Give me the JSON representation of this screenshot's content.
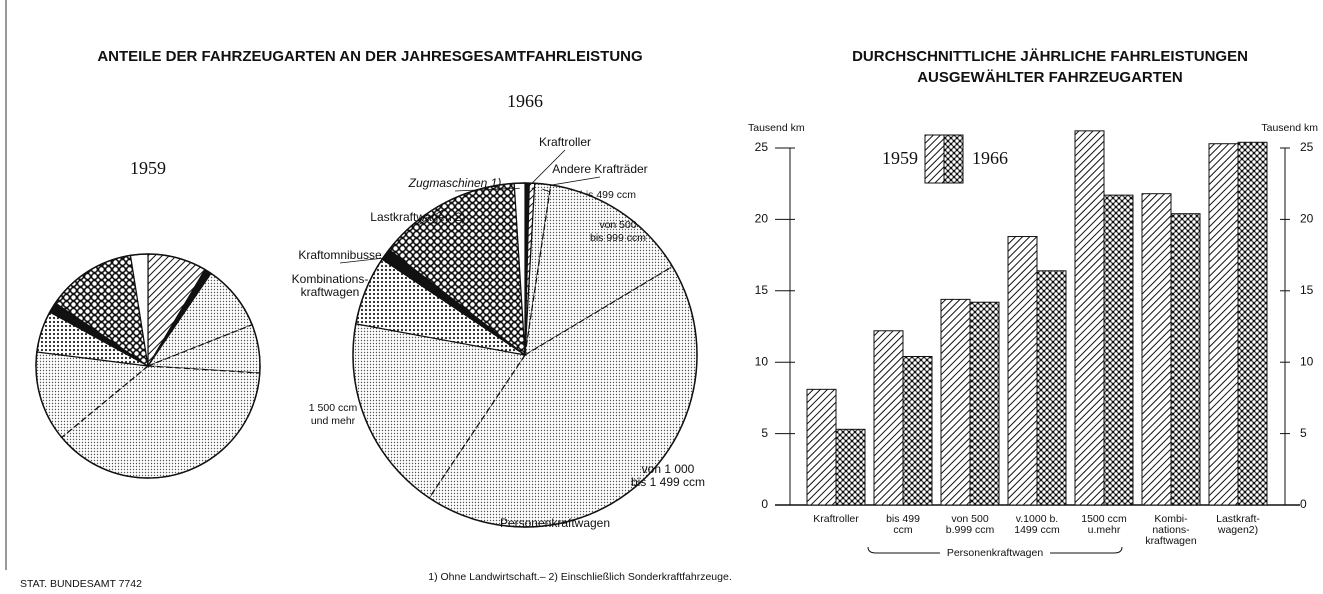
{
  "source": "STAT. BUNDESAMT 7742",
  "footnote": "1) Ohne Landwirtschaft.– 2) Einschließlich Sonderkraftfahrzeuge.",
  "chart_data": [
    {
      "type": "pie",
      "title": "ANTEILE DER FAHRZEUGARTEN AN DER JAHRESGESAMTFAHRLEISTUNG",
      "subtitle": "1959",
      "values": [
        8.5,
        1,
        9.5,
        7,
        38,
        13,
        6,
        1.5,
        13,
        2.5
      ],
      "patterns": [
        "hatch",
        "solid",
        "dots",
        "dots",
        "dots",
        "dots",
        "dotsmed",
        "solid",
        "coarse",
        "white"
      ]
    },
    {
      "type": "pie",
      "subtitle": "1966",
      "categories": [
        [
          "Kraftroller"
        ],
        [
          "Andere Krafträder"
        ],
        [
          "bis 499 ccm"
        ],
        [
          "von 500",
          "bis 999 ccm"
        ],
        [
          "von 1 000",
          "bis 1 499 ccm"
        ],
        [
          "1 500 ccm",
          "und mehr"
        ],
        [
          "Kombinations-",
          "kraftwagen"
        ],
        [
          "Kraftomnibusse"
        ],
        [
          "Lastkraftwagen 2)"
        ],
        [
          "Zugmaschinen 1)"
        ]
      ],
      "group_label": "Personenkraftwagen",
      "values": [
        0.4,
        0.5,
        1.5,
        14,
        43,
        18.5,
        6.5,
        1.1,
        13.5,
        1
      ],
      "patterns": [
        "solid",
        "hatch",
        "dots",
        "dots",
        "dots",
        "dots",
        "dotsmed",
        "solid",
        "coarse",
        "white"
      ]
    },
    {
      "type": "bar",
      "title": [
        "DURCHSCHNITTLICHE JÄHRLICHE FAHRLEISTUNGEN",
        "AUSGEWÄHLTER FAHRZEUGARTEN"
      ],
      "y_label": "Tausend km",
      "y2_label": "Tausend km",
      "categories": [
        [
          "Kraftroller"
        ],
        [
          "bis 499",
          "ccm"
        ],
        [
          "von 500",
          "b.999 ccm"
        ],
        [
          "v.1000 b.",
          "1499 ccm"
        ],
        [
          "1500 ccm",
          "u.mehr"
        ],
        [
          "Kombi-",
          "nations-",
          "kraftwagen"
        ],
        [
          "Lastkraft-",
          "wagen2)"
        ]
      ],
      "group_label": "Personenkraftwagen",
      "series": [
        {
          "name": "1959",
          "pattern": "hatch",
          "values": [
            8.1,
            12.2,
            14.4,
            18.8,
            26.2,
            21.8,
            25.3
          ]
        },
        {
          "name": "1966",
          "pattern": "cross",
          "values": [
            5.3,
            10.4,
            14.2,
            16.4,
            21.7,
            20.4,
            25.4
          ]
        }
      ],
      "ylim": [
        0,
        25
      ],
      "yticks": [
        0,
        5,
        10,
        15,
        20,
        25
      ],
      "y2lim": [
        0,
        25
      ],
      "y2ticks": [
        0,
        5,
        10,
        15,
        20,
        25
      ]
    }
  ]
}
